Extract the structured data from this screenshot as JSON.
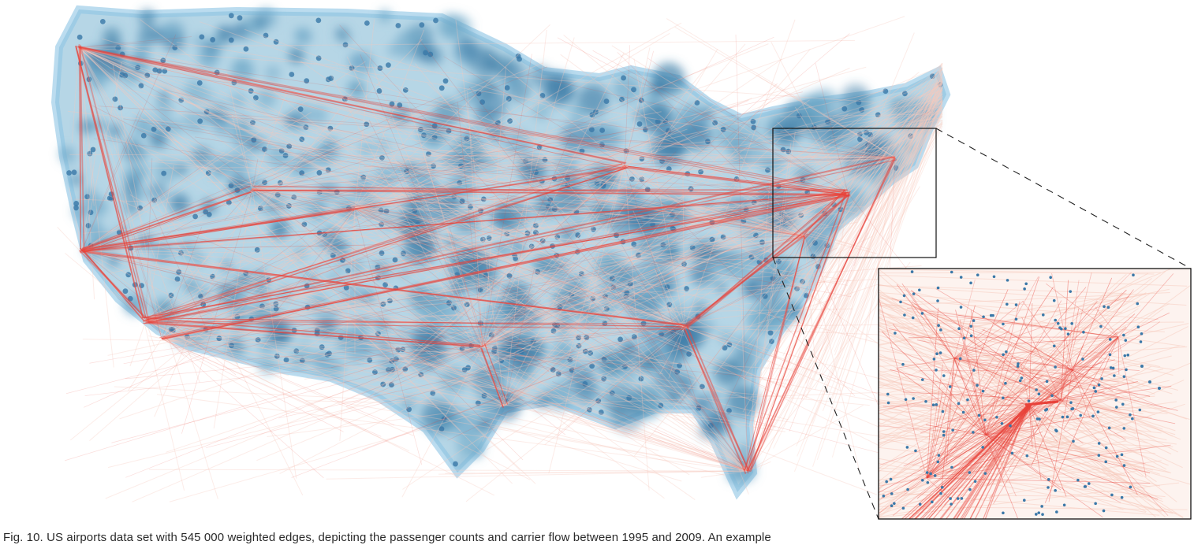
{
  "figure": {
    "caption": "Fig. 10. US airports data set with 545 000 weighted edges, depicting the passenger counts and carrier flow between 1995 and 2009. An example",
    "colors": {
      "density_light": "#a9cfe2",
      "density_mid": "#6fa8c8",
      "density_dark": "#3f7ea8",
      "airport_node": "#3a78a8",
      "edge_faint": "#f7c9bc",
      "edge_strong": "#e8423a",
      "inset_frame": "#111111",
      "zoom_line": "#222222"
    },
    "views": {
      "main": "us-map-edge-bundling",
      "inset": "zoomed-northeast-detail"
    }
  }
}
